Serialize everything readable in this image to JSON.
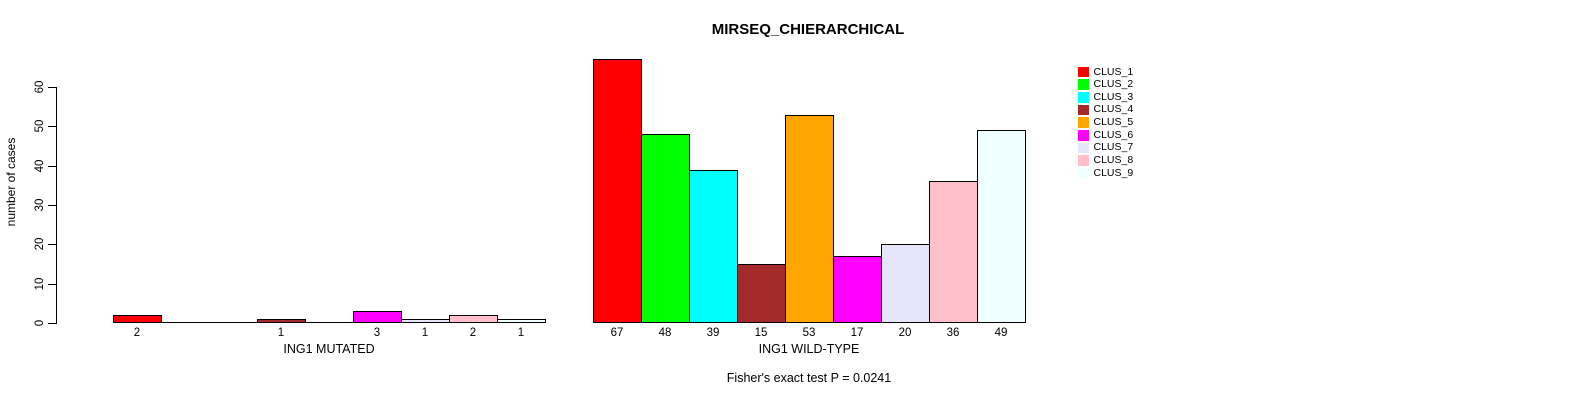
{
  "chart_data": {
    "type": "bar",
    "title": "MIRSEQ_CHIERARCHICAL",
    "ylabel": "number of cases",
    "footer": "Fisher's exact test P = 0.0241",
    "ylim": [
      0,
      60
    ],
    "yticks": [
      0,
      10,
      20,
      30,
      40,
      50,
      60
    ],
    "grid": false,
    "bar_value_labels": "shown under each non-zero bar",
    "legend_position": "top-right",
    "legend": [
      {
        "label": "CLUS_1",
        "color": "#FF0000"
      },
      {
        "label": "CLUS_2",
        "color": "#00FF00"
      },
      {
        "label": "CLUS_3",
        "color": "#00FFFF"
      },
      {
        "label": "CLUS_4",
        "color": "#A52A2A"
      },
      {
        "label": "CLUS_5",
        "color": "#FFA500"
      },
      {
        "label": "CLUS_6",
        "color": "#FF00FF"
      },
      {
        "label": "CLUS_7",
        "color": "#E6E6FA"
      },
      {
        "label": "CLUS_8",
        "color": "#FFC0CB"
      },
      {
        "label": "CLUS_9",
        "color": "#F0FFFF"
      }
    ],
    "groups": [
      {
        "xlabel": "ING1 MUTATED",
        "series": [
          {
            "name": "CLUS_1",
            "value": 2
          },
          {
            "name": "CLUS_2",
            "value": 0
          },
          {
            "name": "CLUS_3",
            "value": 0
          },
          {
            "name": "CLUS_4",
            "value": 1
          },
          {
            "name": "CLUS_5",
            "value": 0
          },
          {
            "name": "CLUS_6",
            "value": 3
          },
          {
            "name": "CLUS_7",
            "value": 1
          },
          {
            "name": "CLUS_8",
            "value": 2
          },
          {
            "name": "CLUS_9",
            "value": 1
          }
        ]
      },
      {
        "xlabel": "ING1 WILD-TYPE",
        "series": [
          {
            "name": "CLUS_1",
            "value": 67
          },
          {
            "name": "CLUS_2",
            "value": 48
          },
          {
            "name": "CLUS_3",
            "value": 39
          },
          {
            "name": "CLUS_4",
            "value": 15
          },
          {
            "name": "CLUS_5",
            "value": 53
          },
          {
            "name": "CLUS_6",
            "value": 17
          },
          {
            "name": "CLUS_7",
            "value": 20
          },
          {
            "name": "CLUS_8",
            "value": 36
          },
          {
            "name": "CLUS_9",
            "value": 49
          }
        ]
      }
    ]
  }
}
